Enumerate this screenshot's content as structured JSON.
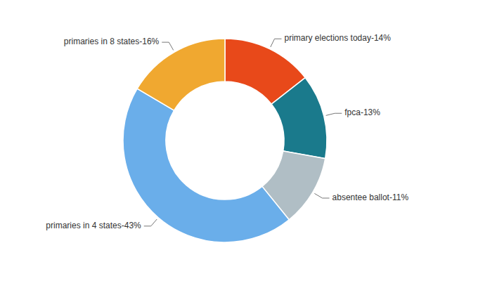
{
  "chart_data": {
    "type": "pie",
    "values": [
      14,
      13,
      11,
      43,
      16
    ],
    "value_labels": [
      "primary elections today-14%",
      "fpca-13%",
      "absentee ballot-11%",
      "primaries in 4 states-43%",
      "primaries in 8 states-16%"
    ],
    "colors": [
      "#e8491a",
      "#1a7a8c",
      "#b0bec5",
      "#6aaeea",
      "#f0a830"
    ],
    "data_labels": true
  }
}
